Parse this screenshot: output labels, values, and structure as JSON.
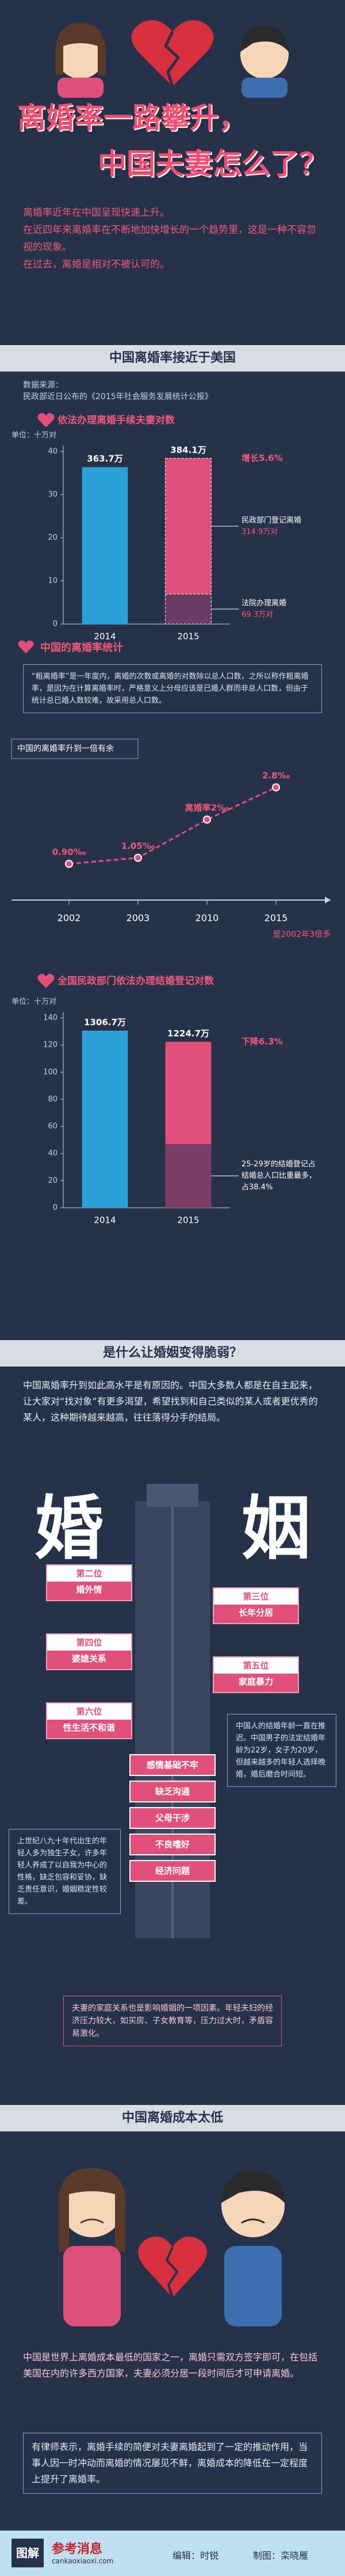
{
  "header": {
    "title_line1": "离婚率一路攀升，",
    "title_line2": "中国夫妻怎么了？"
  },
  "intro": [
    "离婚率近年在中国呈现快速上升。",
    "在近四年来离婚率在不断地加快增长的一个趋势里，这是一种不容忽视的现象。",
    "在过去，离婚是相对不被认可的。"
  ],
  "sections": [
    {
      "title": "中国离婚率接近于美国"
    },
    {
      "title": "是什么让婚姻变得脆弱？"
    },
    {
      "title": "中国离婚成本太低"
    }
  ],
  "source": [
    "数据来源：",
    "民政部近日公布的《2015年社会服务发展统计公报》"
  ],
  "chart_data": [
    {
      "type": "bar",
      "title": "依法办理离婚手续夫妻对数",
      "ylabel": "单位：十万对",
      "categories": [
        "2014",
        "2015"
      ],
      "values": [
        36.37,
        38.41
      ],
      "value_labels": [
        "363.7万",
        "384.1万"
      ],
      "colors": [
        "#2a9fd8",
        "#e0507a"
      ],
      "ylim": [
        0,
        40
      ],
      "yticks": [
        0,
        10,
        20,
        30,
        40
      ],
      "annotation": "增长5.6%",
      "breakdown": [
        {
          "name": "法院办理离婚",
          "value": 6.93,
          "value_label": "69.3万对",
          "color": "#6d3a63"
        },
        {
          "name": "民政部门登记离婚",
          "value": 31.49,
          "value_label": "314.9万对",
          "color": "#e0507a"
        }
      ]
    },
    {
      "type": "line",
      "title": "中国的离婚率统计",
      "description": "“粗离婚率”是一年度内，离婚的次数或离婚的对数除以总人口数，之所以称作粗离婚率，是因为在计算离婚率时，严格意义上分母应该是已婚人群而非总人口数，但由于统计总已婚人数较难，故采用总人口数。",
      "categories": [
        "2002",
        "2003",
        "2010",
        "2015"
      ],
      "values": [
        0.9,
        1.05,
        2.0,
        2.8
      ],
      "value_labels": [
        "0.90‰",
        "1.05‰",
        "离婚率2‰",
        "2.8‰"
      ],
      "color": "#e0507a",
      "annotations": [
        "中国的离婚率升到一倍有余",
        "是2002年3倍多"
      ]
    },
    {
      "type": "bar",
      "title": "全国民政部门依法办理结婚登记对数",
      "ylabel": "单位：十万对",
      "categories": [
        "2014",
        "2015"
      ],
      "values": [
        130.67,
        122.47
      ],
      "value_labels": [
        "1306.7万",
        "1224.7万"
      ],
      "colors": [
        "#2a9fd8",
        "#e0507a"
      ],
      "ylim": [
        0,
        140
      ],
      "yticks": [
        0,
        20,
        40,
        60,
        80,
        100,
        120,
        140
      ],
      "annotation": "下降6.3%",
      "share": {
        "label": [
          "25-29岁的结婚登记占",
          "结婚总人口比重最多，",
          "占38.4%"
        ],
        "value": 38.4,
        "color": "#7a3d66"
      }
    }
  ],
  "reasons": {
    "intro": "中国离婚率升到如此高水平是有原因的。中国大多数人都是在自主起来，让大家对“找对象”有更多渴望，希望找到和自己类似的某人或者更优秀的某人，这种期待越来越高，往往落得分手的结局。",
    "big": [
      "婚",
      "姻"
    ],
    "ranked": [
      {
        "rank": "第二位",
        "label": "婚外情"
      },
      {
        "rank": "第三位",
        "label": "长年分居"
      },
      {
        "rank": "第四位",
        "label": "婆媳关系"
      },
      {
        "rank": "第五位",
        "label": "家庭暴力"
      },
      {
        "rank": "第六位",
        "label": "性生活不和谐"
      }
    ],
    "causes": [
      "感情基础不牢",
      "缺乏沟通",
      "父母干涉",
      "不良嗜好",
      "经济问题"
    ],
    "left_text": "上世纪八九十年代出生的年轻人多为独生子女，许多年轻人养成了以自我为中心的性格，缺乏包容和妥协，缺乏责任意识，婚姻稳定性较差。",
    "right_text": "中国人的结婚年龄一直在推迟。中国男子的法定结婚年龄为22岁，女子为20岁，但越来越多的年轻人选择晚婚，婚后磨合时间短。",
    "bottom_text": "夫妻的家庭关系也是影响婚姻的一项因素。年轻夫妇的经济压力较大，如买房、子女教育等，压力过大时，矛盾容易激化。"
  },
  "cost": {
    "text1": "中国是世界上离婚成本最低的国家之一，离婚只需双方签字即可，在包括美国在内的许多西方国家，夫妻必须分居一段时间后才可申请离婚。",
    "text2": "有律师表示，离婚手续的简便对夫妻离婚起到了一定的推动作用，当事人因一时冲动而离婚的情况屡见不鲜，离婚成本的降低在一定程度上提升了离婚率。"
  },
  "footer": {
    "logo": "图解",
    "brand": "参考消息",
    "site": "cankaoxiaoxi.com",
    "editor": "编辑：时锐",
    "designer": "制图：栾晓雁"
  }
}
